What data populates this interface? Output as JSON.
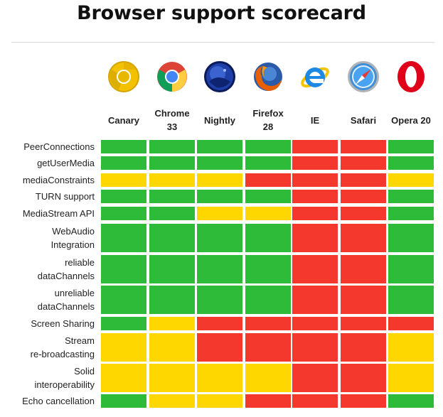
{
  "title": "Browser support scorecard",
  "browsers": [
    {
      "name": "Canary",
      "line1": "Canary",
      "line2": "",
      "icon": "chrome-canary-logo-icon"
    },
    {
      "name": "Chrome 33",
      "line1": "Chrome",
      "line2": "33",
      "icon": "chrome-logo-icon"
    },
    {
      "name": "Nightly",
      "line1": "Nightly",
      "line2": "",
      "icon": "firefox-nightly-logo-icon"
    },
    {
      "name": "Firefox 28",
      "line1": "Firefox",
      "line2": "28",
      "icon": "firefox-logo-icon"
    },
    {
      "name": "IE",
      "line1": "IE",
      "line2": "",
      "icon": "internet-explorer-logo-icon"
    },
    {
      "name": "Safari",
      "line1": "Safari",
      "line2": "",
      "icon": "safari-logo-icon"
    },
    {
      "name": "Opera 20",
      "line1": "Opera 20",
      "line2": "",
      "icon": "opera-logo-icon"
    }
  ],
  "features": [
    {
      "line1": "PeerConnections",
      "line2": "",
      "support": [
        "green",
        "green",
        "green",
        "green",
        "red",
        "red",
        "green"
      ]
    },
    {
      "line1": "getUserMedia",
      "line2": "",
      "support": [
        "green",
        "green",
        "green",
        "green",
        "red",
        "red",
        "green"
      ]
    },
    {
      "line1": "mediaConstraints",
      "line2": "",
      "support": [
        "yellow",
        "yellow",
        "yellow",
        "red",
        "red",
        "red",
        "yellow"
      ]
    },
    {
      "line1": "TURN support",
      "line2": "",
      "support": [
        "green",
        "green",
        "green",
        "green",
        "red",
        "red",
        "green"
      ]
    },
    {
      "line1": "MediaStream API",
      "line2": "",
      "support": [
        "green",
        "green",
        "yellow",
        "yellow",
        "red",
        "red",
        "green"
      ]
    },
    {
      "line1": "WebAudio",
      "line2": "Integration",
      "support": [
        "green",
        "green",
        "green",
        "green",
        "red",
        "red",
        "green"
      ]
    },
    {
      "line1": "reliable",
      "line2": "dataChannels",
      "support": [
        "green",
        "green",
        "green",
        "green",
        "red",
        "red",
        "green"
      ]
    },
    {
      "line1": "unreliable",
      "line2": "dataChannels",
      "support": [
        "green",
        "green",
        "green",
        "green",
        "red",
        "red",
        "green"
      ]
    },
    {
      "line1": "Screen Sharing",
      "line2": "",
      "support": [
        "green",
        "yellow",
        "red",
        "red",
        "red",
        "red",
        "red"
      ]
    },
    {
      "line1": "Stream",
      "line2": "re-broadcasting",
      "support": [
        "yellow",
        "yellow",
        "red",
        "red",
        "red",
        "red",
        "yellow"
      ]
    },
    {
      "line1": "Solid",
      "line2": "interoperability",
      "support": [
        "yellow",
        "yellow",
        "yellow",
        "yellow",
        "red",
        "red",
        "yellow"
      ]
    },
    {
      "line1": "Echo cancellation",
      "line2": "",
      "support": [
        "green",
        "yellow",
        "yellow",
        "red",
        "red",
        "red",
        "green"
      ]
    }
  ],
  "colors": {
    "green": "#2ebb3a",
    "yellow": "#ffd700",
    "red": "#f5382d"
  }
}
